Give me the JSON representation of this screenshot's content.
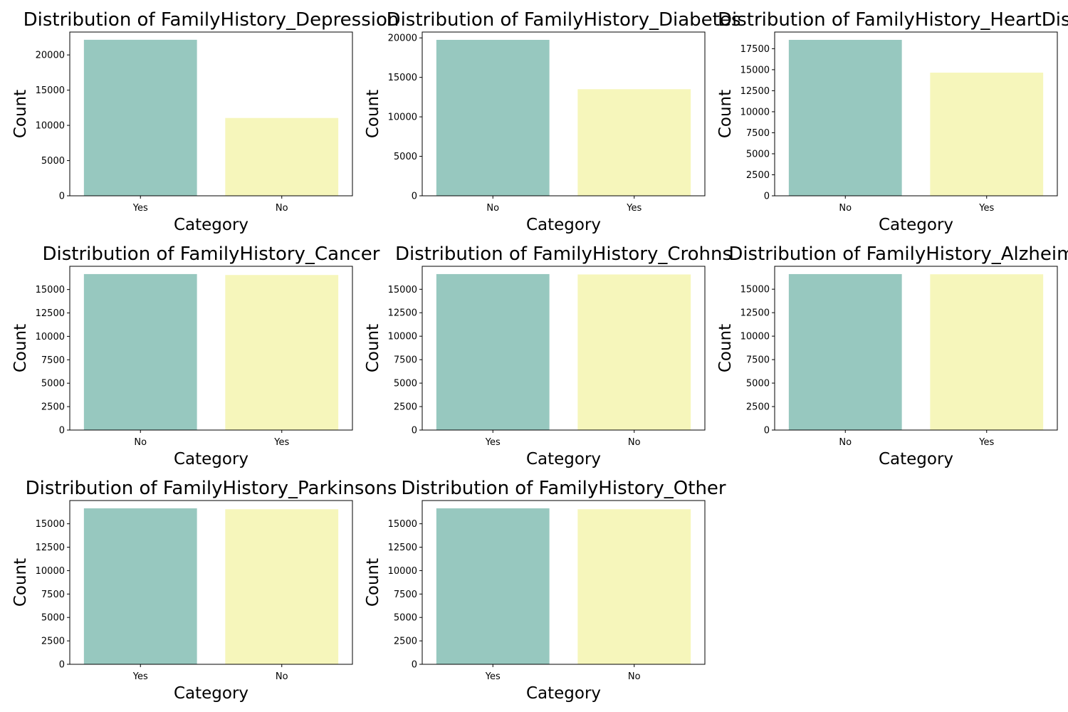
{
  "chart_data": [
    {
      "type": "bar",
      "title": "Distribution of FamilyHistory_Depression",
      "xlabel": "Category",
      "ylabel": "Count",
      "categories": [
        "Yes",
        "No"
      ],
      "values": [
        22150,
        11050
      ],
      "ylim": [
        0,
        23250
      ],
      "yticks": [
        0,
        5000,
        10000,
        15000,
        20000
      ],
      "bar_colors": [
        "#97c8bf",
        "#f6f6bb"
      ],
      "grid": false,
      "legend": "none"
    },
    {
      "type": "bar",
      "title": "Distribution of FamilyHistory_Diabetes",
      "xlabel": "Category",
      "ylabel": "Count",
      "categories": [
        "No",
        "Yes"
      ],
      "values": [
        19750,
        13500
      ],
      "ylim": [
        0,
        20740
      ],
      "yticks": [
        0,
        5000,
        10000,
        15000,
        20000
      ],
      "bar_colors": [
        "#97c8bf",
        "#f6f6bb"
      ],
      "grid": false,
      "legend": "none"
    },
    {
      "type": "bar",
      "title": "Distribution of FamilyHistory_HeartDisease",
      "xlabel": "Category",
      "ylabel": "Count",
      "categories": [
        "No",
        "Yes"
      ],
      "values": [
        18550,
        14650
      ],
      "ylim": [
        0,
        19480
      ],
      "yticks": [
        0,
        2500,
        5000,
        7500,
        10000,
        12500,
        15000,
        17500
      ],
      "bar_colors": [
        "#97c8bf",
        "#f6f6bb"
      ],
      "grid": false,
      "legend": "none"
    },
    {
      "type": "bar",
      "title": "Distribution of FamilyHistory_Cancer",
      "xlabel": "Category",
      "ylabel": "Count",
      "categories": [
        "No",
        "Yes"
      ],
      "values": [
        16650,
        16550
      ],
      "ylim": [
        0,
        17480
      ],
      "yticks": [
        0,
        2500,
        5000,
        7500,
        10000,
        12500,
        15000
      ],
      "bar_colors": [
        "#97c8bf",
        "#f6f6bb"
      ],
      "grid": false,
      "legend": "none"
    },
    {
      "type": "bar",
      "title": "Distribution of FamilyHistory_Crohns",
      "xlabel": "Category",
      "ylabel": "Count",
      "categories": [
        "Yes",
        "No"
      ],
      "values": [
        16620,
        16580
      ],
      "ylim": [
        0,
        17450
      ],
      "yticks": [
        0,
        2500,
        5000,
        7500,
        10000,
        12500,
        15000
      ],
      "bar_colors": [
        "#97c8bf",
        "#f6f6bb"
      ],
      "grid": false,
      "legend": "none"
    },
    {
      "type": "bar",
      "title": "Distribution of FamilyHistory_Alzheimers",
      "xlabel": "Category",
      "ylabel": "Count",
      "categories": [
        "No",
        "Yes"
      ],
      "values": [
        16610,
        16590
      ],
      "ylim": [
        0,
        17440
      ],
      "yticks": [
        0,
        2500,
        5000,
        7500,
        10000,
        12500,
        15000
      ],
      "bar_colors": [
        "#97c8bf",
        "#f6f6bb"
      ],
      "grid": false,
      "legend": "none"
    },
    {
      "type": "bar",
      "title": "Distribution of FamilyHistory_Parkinsons",
      "xlabel": "Category",
      "ylabel": "Count",
      "categories": [
        "Yes",
        "No"
      ],
      "values": [
        16650,
        16550
      ],
      "ylim": [
        0,
        17480
      ],
      "yticks": [
        0,
        2500,
        5000,
        7500,
        10000,
        12500,
        15000
      ],
      "bar_colors": [
        "#97c8bf",
        "#f6f6bb"
      ],
      "grid": false,
      "legend": "none"
    },
    {
      "type": "bar",
      "title": "Distribution of FamilyHistory_Other",
      "xlabel": "Category",
      "ylabel": "Count",
      "categories": [
        "Yes",
        "No"
      ],
      "values": [
        16650,
        16550
      ],
      "ylim": [
        0,
        17480
      ],
      "yticks": [
        0,
        2500,
        5000,
        7500,
        10000,
        12500,
        15000
      ],
      "bar_colors": [
        "#97c8bf",
        "#f6f6bb"
      ],
      "grid": false,
      "legend": "none"
    }
  ]
}
